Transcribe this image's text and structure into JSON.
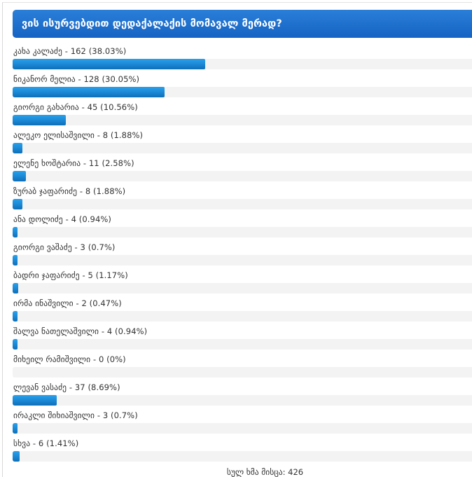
{
  "poll": {
    "title": "ვის ისურვებდით დედაქალაქის მომავალ მერად?",
    "options": [
      {
        "label": "კახა კალაძე - 162 (38.03%)",
        "percent": 38.03
      },
      {
        "label": "ნიკანორ მელია - 128 (30.05%)",
        "percent": 30.05
      },
      {
        "label": "გიორგი გახარია - 45 (10.56%)",
        "percent": 10.56
      },
      {
        "label": "ალეკო ელისაშვილი - 8 (1.88%)",
        "percent": 1.88
      },
      {
        "label": "ელენე ხოშტარია - 11 (2.58%)",
        "percent": 2.58
      },
      {
        "label": "ზურაბ ჯაფარიძე - 8 (1.88%)",
        "percent": 1.88
      },
      {
        "label": "ანა დოლიძე - 4 (0.94%)",
        "percent": 0.94
      },
      {
        "label": "გიორგი ვაშაძე - 3 (0.7%)",
        "percent": 0.7
      },
      {
        "label": "ბადრი ჯაფარიძე - 5 (1.17%)",
        "percent": 1.17
      },
      {
        "label": "ირმა ინაშვილი - 2 (0.47%)",
        "percent": 0.47
      },
      {
        "label": "შალვა ნათელაშვილი - 4 (0.94%)",
        "percent": 0.94
      },
      {
        "label": "მიხეილ რამიშვილი - 0 (0%)",
        "percent": 0
      },
      {
        "label": "ლევან ვასაძე - 37 (8.69%)",
        "percent": 8.69
      },
      {
        "label": "ირაკლი შიხიაშვილი - 3 (0.7%)",
        "percent": 0.7
      },
      {
        "label": "სხვა - 6 (1.41%)",
        "percent": 1.41
      }
    ],
    "total_votes_label": "სულ ხმა მისცა: 426"
  },
  "colors": {
    "header_bg": "#1a68c9",
    "bar_fill": "#1a87d4",
    "bar_track": "#f3f3f3",
    "text": "#333333"
  }
}
